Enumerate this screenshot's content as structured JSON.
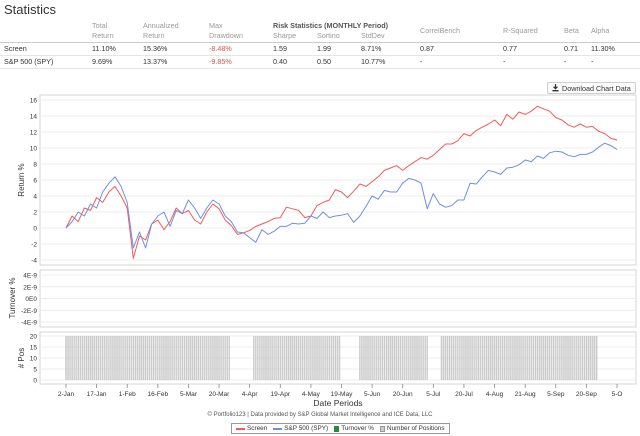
{
  "title": "Statistics",
  "table": {
    "group_header": [
      "Total",
      "Annualized",
      "Max",
      "Risk Statistics (MONTHLY Period)",
      "CorrelBench",
      "R-Squared",
      "Beta",
      "Alpha"
    ],
    "sub_header": [
      "",
      "Return",
      "Return",
      "Drawdown",
      "Sharpe",
      "Sortino",
      "StdDev",
      "",
      "",
      "",
      ""
    ],
    "rows": [
      [
        "Screen",
        "11.10%",
        "15.36%",
        "-8.48%",
        "1.59",
        "1.99",
        "8.71%",
        "0.87",
        "0.77",
        "0.71",
        "11.30%"
      ],
      [
        "S&P 500 (SPY)",
        "9.69%",
        "13.37%",
        "-9.85%",
        "0.40",
        "0.50",
        "10.77%",
        "-",
        "-",
        "-",
        "-"
      ]
    ]
  },
  "download_button": {
    "label": "Download Chart Data",
    "icon": "download-icon"
  },
  "footer": "© Portfolio123 | Data provided by S&P Global Market Intelligence and ICE Data, LLC",
  "legend": [
    {
      "label": "Screen",
      "color": "#f05b5b",
      "kind": "line"
    },
    {
      "label": "S&P 500 (SPY)",
      "color": "#6f8fe0",
      "kind": "line"
    },
    {
      "label": "Turnover %",
      "color": "#2c8a3c",
      "kind": "box"
    },
    {
      "label": "Number of Positions",
      "color": "#cccccc",
      "kind": "box"
    }
  ],
  "chart_data": [
    {
      "type": "line",
      "title": "",
      "xlabel": "",
      "ylabel": "Return %",
      "ylim": [
        -4,
        16
      ],
      "yticks": [
        -4,
        -2,
        0,
        2,
        4,
        6,
        8,
        10,
        12,
        14,
        16
      ],
      "grid": true,
      "series": [
        {
          "name": "Screen",
          "color": "#f05b5b",
          "x": [
            0,
            3,
            6,
            9,
            12,
            15,
            18,
            21,
            24,
            27,
            30,
            33,
            36,
            39,
            42,
            45,
            48,
            51,
            54,
            57,
            60,
            63,
            66,
            69,
            72,
            75,
            78,
            81,
            84,
            87,
            90,
            93,
            96,
            99,
            102,
            105,
            108,
            111,
            114,
            117,
            120,
            123,
            126,
            129,
            132,
            135,
            138,
            141,
            144,
            147,
            150,
            153,
            156,
            159,
            162,
            165,
            168,
            171,
            174,
            177,
            180,
            183,
            186,
            189,
            192,
            195,
            198,
            201,
            204,
            207,
            210,
            213,
            216,
            219,
            222,
            225,
            228,
            231,
            234,
            237,
            240,
            243,
            246,
            249,
            252,
            255,
            258,
            261,
            264,
            267,
            270
          ],
          "y": [
            0,
            1.5,
            0.8,
            2.5,
            2.2,
            3.8,
            3.2,
            4.5,
            5.2,
            4,
            2.5,
            -3.8,
            -1,
            -1.5,
            0.5,
            1,
            -0.2,
            0.8,
            2.5,
            1.8,
            2.2,
            1,
            0.5,
            2,
            3,
            2.4,
            1,
            0.3,
            -0.8,
            -0.6,
            -0.3,
            0.2,
            0.5,
            0.8,
            1.2,
            1.3,
            2.6,
            2.4,
            2.2,
            1.3,
            1.5,
            2.8,
            3.2,
            3.5,
            4.8,
            4.5,
            3.8,
            4.6,
            5.5,
            5.2,
            5.8,
            6.4,
            7.2,
            7.5,
            7.8,
            7.2,
            7.8,
            8.3,
            8.8,
            8.6,
            9.1,
            9.8,
            10.5,
            10.5,
            10.9,
            11.8,
            11.5,
            12.2,
            12.6,
            13,
            13.5,
            12.8,
            14.2,
            13.6,
            14.5,
            14.2,
            14.6,
            15.2,
            14.9,
            14.6,
            13.8,
            13.5,
            12.9,
            12.6,
            13,
            12.6,
            12.7,
            12.1,
            11.8,
            11.2,
            11
          ]
        },
        {
          "name": "S&P 500 (SPY)",
          "color": "#6f8fe0",
          "x": [
            0,
            3,
            6,
            9,
            12,
            15,
            18,
            21,
            24,
            27,
            30,
            33,
            36,
            39,
            42,
            45,
            48,
            51,
            54,
            57,
            60,
            63,
            66,
            69,
            72,
            75,
            78,
            81,
            84,
            87,
            90,
            93,
            96,
            99,
            102,
            105,
            108,
            111,
            114,
            117,
            120,
            123,
            126,
            129,
            132,
            135,
            138,
            141,
            144,
            147,
            150,
            153,
            156,
            159,
            162,
            165,
            168,
            171,
            174,
            177,
            180,
            183,
            186,
            189,
            192,
            195,
            198,
            201,
            204,
            207,
            210,
            213,
            216,
            219,
            222,
            225,
            228,
            231,
            234,
            237,
            240,
            243,
            246,
            249,
            252,
            255,
            258,
            261,
            264,
            267,
            270
          ],
          "y": [
            0,
            0.8,
            2,
            1.5,
            3,
            2.5,
            4.5,
            5.6,
            6.4,
            5.2,
            3.2,
            -2.5,
            -0.5,
            -2.5,
            0.5,
            1.5,
            2,
            0.2,
            2.2,
            1.8,
            3.5,
            2.5,
            1.2,
            2.5,
            3.5,
            3,
            1.5,
            0.8,
            -0.5,
            -0.6,
            -1.2,
            -1.8,
            -0.2,
            -0.8,
            -0.4,
            0.2,
            0.2,
            0.6,
            0.5,
            0.6,
            1.5,
            1.2,
            2,
            1.3,
            1.5,
            1.6,
            1.8,
            0.7,
            1.5,
            2.7,
            4,
            3.6,
            4.7,
            4.5,
            4.5,
            5.6,
            6.2,
            6,
            5.6,
            2.4,
            4.3,
            3,
            2.6,
            2.8,
            3.5,
            3.5,
            5.6,
            5.5,
            6.4,
            7.2,
            7,
            6.7,
            7.5,
            7.6,
            7.9,
            8.5,
            8.3,
            9,
            8.7,
            9.4,
            9.6,
            9.5,
            9.1,
            8.9,
            9.2,
            9.2,
            9.5,
            10.1,
            10.6,
            10.3,
            9.8
          ]
        }
      ]
    },
    {
      "type": "bar",
      "title": "",
      "ylabel": "Turnover %",
      "ylim": [
        -4e-09,
        4e-09
      ],
      "yticks": [
        "4E-9",
        "2E-9",
        "0E0",
        "-2E-9",
        "-4E-9"
      ],
      "series": [
        {
          "name": "Turnover %",
          "color": "#2c8a3c",
          "values": []
        }
      ]
    },
    {
      "type": "bar",
      "title": "",
      "xlabel": "Date Periods",
      "ylabel": "# Pos",
      "ylim": [
        0,
        20
      ],
      "yticks": [
        0,
        5,
        10,
        15,
        20
      ],
      "series": [
        {
          "name": "Number of Positions",
          "color": "#cccccc",
          "segments": [
            [
              0,
              80
            ],
            [
              92,
              134
            ],
            [
              144,
              177
            ],
            [
              184,
              260
            ]
          ],
          "value": 20
        }
      ]
    }
  ],
  "x_axis": {
    "ticks": [
      {
        "label": "2-Jan",
        "x": 0
      },
      {
        "label": "17-Jan",
        "x": 15
      },
      {
        "label": "1-Feb",
        "x": 30
      },
      {
        "label": "16-Feb",
        "x": 45
      },
      {
        "label": "5-Mar",
        "x": 60
      },
      {
        "label": "20-Mar",
        "x": 75
      },
      {
        "label": "4-Apr",
        "x": 90
      },
      {
        "label": "19-Apr",
        "x": 105
      },
      {
        "label": "4-May",
        "x": 120
      },
      {
        "label": "19-May",
        "x": 135
      },
      {
        "label": "5-Jun",
        "x": 150
      },
      {
        "label": "20-Jun",
        "x": 165
      },
      {
        "label": "5-Jul",
        "x": 180
      },
      {
        "label": "20-Jul",
        "x": 195
      },
      {
        "label": "4-Aug",
        "x": 210
      },
      {
        "label": "21-Aug",
        "x": 225
      },
      {
        "label": "5-Sep",
        "x": 240
      },
      {
        "label": "20-Sep",
        "x": 255
      },
      {
        "label": "5-O",
        "x": 270
      }
    ]
  }
}
